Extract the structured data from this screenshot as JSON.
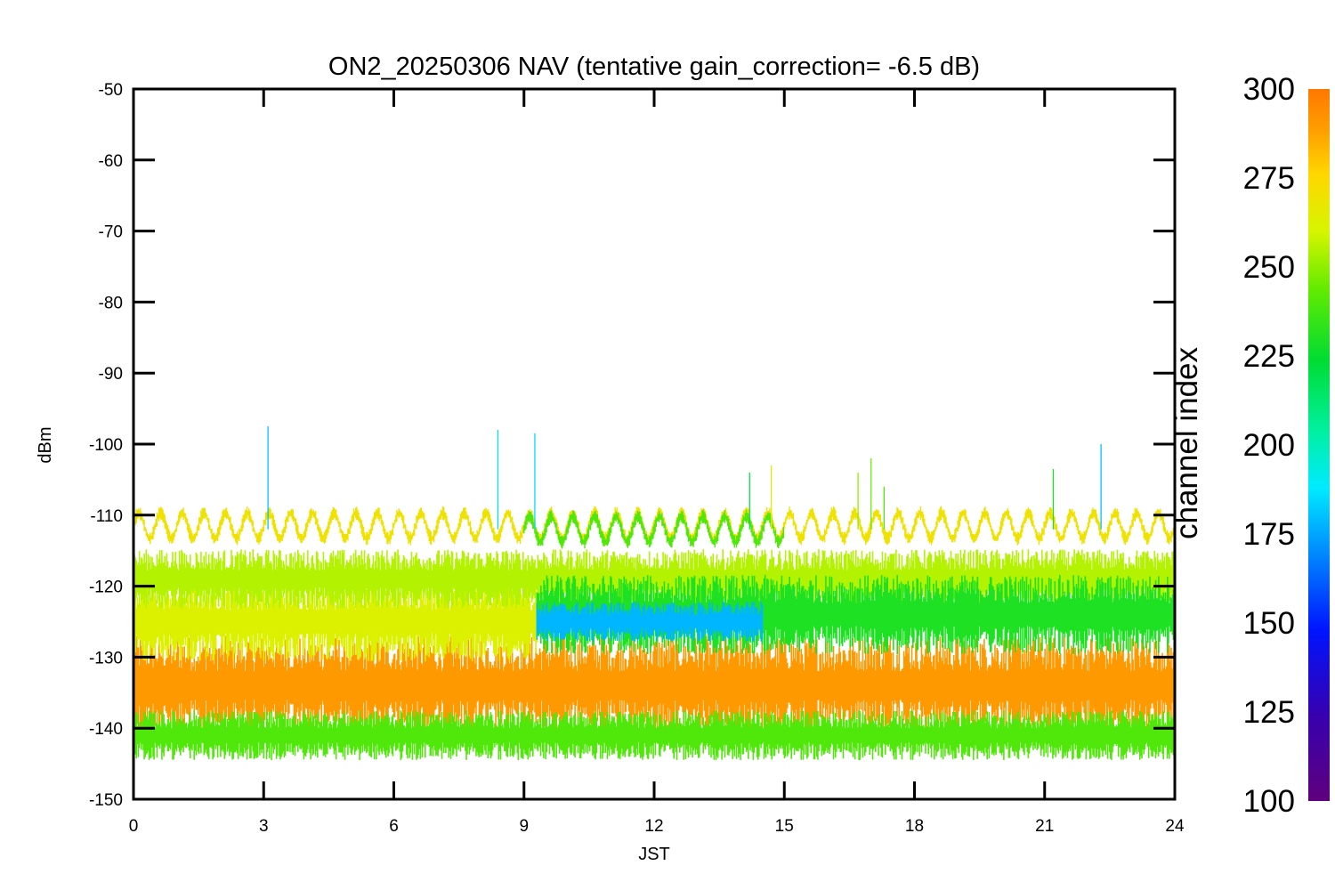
{
  "chart_data": {
    "type": "scatter",
    "title": "ON2_20250306 NAV (tentative gain_correction= -6.5 dB)",
    "xlabel": "JST",
    "ylabel": "dBm",
    "xlim": [
      0,
      24
    ],
    "ylim": [
      -150,
      -50
    ],
    "xticks": [
      0,
      3,
      6,
      9,
      12,
      15,
      18,
      21,
      24
    ],
    "yticks": [
      -50,
      -60,
      -70,
      -80,
      -90,
      -100,
      -110,
      -120,
      -130,
      -140,
      -150
    ],
    "grid": false,
    "colorbar": {
      "label": "channel index",
      "range": [
        100,
        300
      ],
      "ticks": [
        100,
        125,
        150,
        175,
        200,
        225,
        250,
        275,
        300
      ],
      "colormap": "rainbow"
    },
    "series": [
      {
        "channel_index": 290,
        "level_dbm": -134,
        "spread_db": 5,
        "x": [
          0,
          24
        ]
      },
      {
        "channel_index": 262,
        "level_dbm": -125,
        "spread_db": 4,
        "x": [
          0,
          9.3
        ]
      },
      {
        "channel_index": 255,
        "level_dbm": -119,
        "spread_db": 3,
        "x": [
          0,
          24
        ]
      },
      {
        "channel_index": 230,
        "level_dbm": -124,
        "spread_db": 4,
        "x": [
          9.3,
          24
        ]
      },
      {
        "channel_index": 178,
        "level_dbm": -125,
        "spread_db": 2,
        "x": [
          9.3,
          14.5
        ]
      },
      {
        "channel_index": 270,
        "level_dbm": -111.5,
        "spread_db": 2,
        "x": [
          0,
          24
        ],
        "note": "oscillating"
      },
      {
        "channel_index": 240,
        "level_dbm": -112,
        "spread_db": 2,
        "x": [
          9,
          15
        ],
        "note": "oscillating"
      },
      {
        "channel_index": 240,
        "level_dbm": -141,
        "spread_db": 2.5,
        "x": [
          0,
          24
        ]
      }
    ],
    "spikes": [
      {
        "x": 3.1,
        "y": -97.5,
        "channel_index": 180
      },
      {
        "x": 8.4,
        "y": -98,
        "channel_index": 185
      },
      {
        "x": 9.25,
        "y": -98.5,
        "channel_index": 185
      },
      {
        "x": 14.2,
        "y": -104,
        "channel_index": 220
      },
      {
        "x": 14.7,
        "y": -103,
        "channel_index": 265
      },
      {
        "x": 16.7,
        "y": -104,
        "channel_index": 250
      },
      {
        "x": 17.0,
        "y": -102,
        "channel_index": 245
      },
      {
        "x": 17.3,
        "y": -106,
        "channel_index": 240
      },
      {
        "x": 21.2,
        "y": -103.5,
        "channel_index": 230
      },
      {
        "x": 22.3,
        "y": -100,
        "channel_index": 180
      }
    ]
  }
}
